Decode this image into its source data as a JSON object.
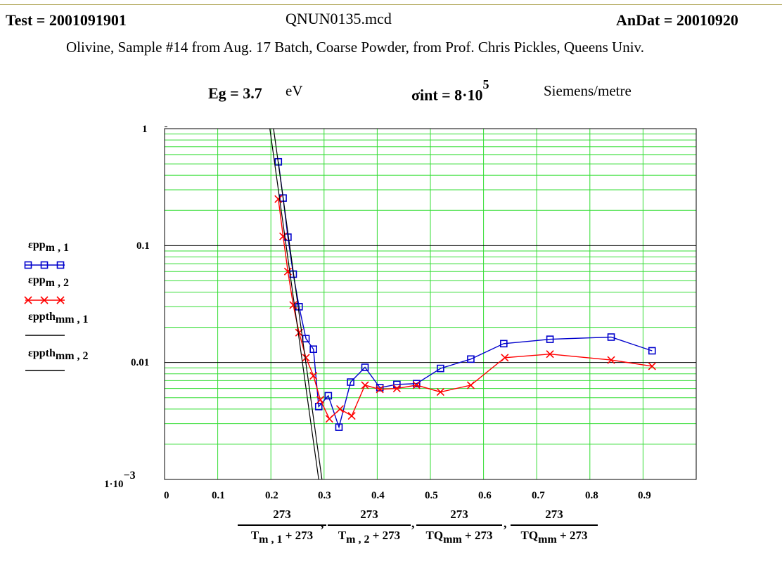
{
  "header": {
    "test_label": "Test = 2001091901",
    "file_name": "QNUN0135.mcd",
    "andat_label": "AnDat = 20010920",
    "subtitle": "Olivine,  Sample #14 from Aug. 17 Batch, Coarse Powder, from Prof. Chris Pickles, Queens Univ."
  },
  "params": {
    "eg_label": "Eg = 3.7",
    "eg_unit": "eV",
    "sigma_label": "σint = 8·10",
    "sigma_exp": "5",
    "sigma_unit": "Siemens/metre"
  },
  "legend": [
    {
      "base": "εpp",
      "sub": "m , 1",
      "marker": "square",
      "color": "#0000cc"
    },
    {
      "base": "εpp",
      "sub": "m , 2",
      "marker": "x",
      "color": "#ff0000"
    },
    {
      "base": "εppth",
      "sub": "mm , 1",
      "marker": "none",
      "color": "#000000"
    },
    {
      "base": "εppth",
      "sub": "mm , 2",
      "marker": "none",
      "color": "#000000"
    }
  ],
  "xlabel": [
    {
      "num": "273",
      "den_base": "T",
      "den_sub": "m , 1",
      "den_tail": " + 273"
    },
    {
      "num": "273",
      "den_base": "T",
      "den_sub": "m , 2",
      "den_tail": " + 273"
    },
    {
      "num": "273",
      "den_base": "TQ",
      "den_sub": "mm",
      "den_tail": " + 273"
    },
    {
      "num": "273",
      "den_base": "TQ",
      "den_sub": "mm",
      "den_tail": " + 273"
    }
  ],
  "chart_data": {
    "type": "line",
    "yscale": "log",
    "xlim": [
      0,
      1.0
    ],
    "ylim": [
      0.001,
      1.0
    ],
    "x_ticks": [
      0,
      0.1,
      0.2,
      0.3,
      0.4,
      0.5,
      0.6,
      0.7,
      0.8,
      0.9
    ],
    "x_tick_labels": [
      "0",
      "0.1",
      "0.2",
      "0.3",
      "0.4",
      "0.5",
      "0.6",
      "0.7",
      "0.8",
      "0.9"
    ],
    "y_ticks": [
      1,
      0.1,
      0.01,
      0.001
    ],
    "y_tick_labels": [
      "1",
      "0.1",
      "0.01",
      "1·10"
    ],
    "y_tick_exp": "−3",
    "grid": true,
    "series": [
      {
        "name": "εpp m,1",
        "color": "#0000cc",
        "marker": "square",
        "x": [
          0.214,
          0.223,
          0.232,
          0.242,
          0.253,
          0.266,
          0.28,
          0.29,
          0.308,
          0.328,
          0.35,
          0.377,
          0.405,
          0.437,
          0.474,
          0.519,
          0.576,
          0.638,
          0.725,
          0.84,
          0.917
        ],
        "y": [
          0.52,
          0.255,
          0.118,
          0.057,
          0.03,
          0.016,
          0.013,
          0.0042,
          0.0052,
          0.0028,
          0.0068,
          0.0091,
          0.0061,
          0.0065,
          0.0066,
          0.0089,
          0.0107,
          0.0145,
          0.0158,
          0.0165,
          0.0126
        ]
      },
      {
        "name": "εpp m,2",
        "color": "#ff0000",
        "marker": "x",
        "x": [
          0.214,
          0.223,
          0.232,
          0.242,
          0.253,
          0.266,
          0.28,
          0.293,
          0.31,
          0.33,
          0.352,
          0.377,
          0.405,
          0.437,
          0.474,
          0.519,
          0.576,
          0.64,
          0.725,
          0.84,
          0.917
        ],
        "y": [
          0.25,
          0.12,
          0.06,
          0.031,
          0.018,
          0.011,
          0.0077,
          0.0048,
          0.0033,
          0.004,
          0.0035,
          0.0064,
          0.0059,
          0.006,
          0.0064,
          0.0056,
          0.0064,
          0.011,
          0.0118,
          0.0105,
          0.0093
        ]
      },
      {
        "name": "εppth mm,1",
        "color": "#000000",
        "marker": "none",
        "x": [
          0.198,
          0.29
        ],
        "y": [
          1.0,
          0.001
        ]
      },
      {
        "name": "εppth mm,2",
        "color": "#000000",
        "marker": "none",
        "x": [
          0.205,
          0.296
        ],
        "y": [
          1.0,
          0.001
        ]
      }
    ]
  }
}
